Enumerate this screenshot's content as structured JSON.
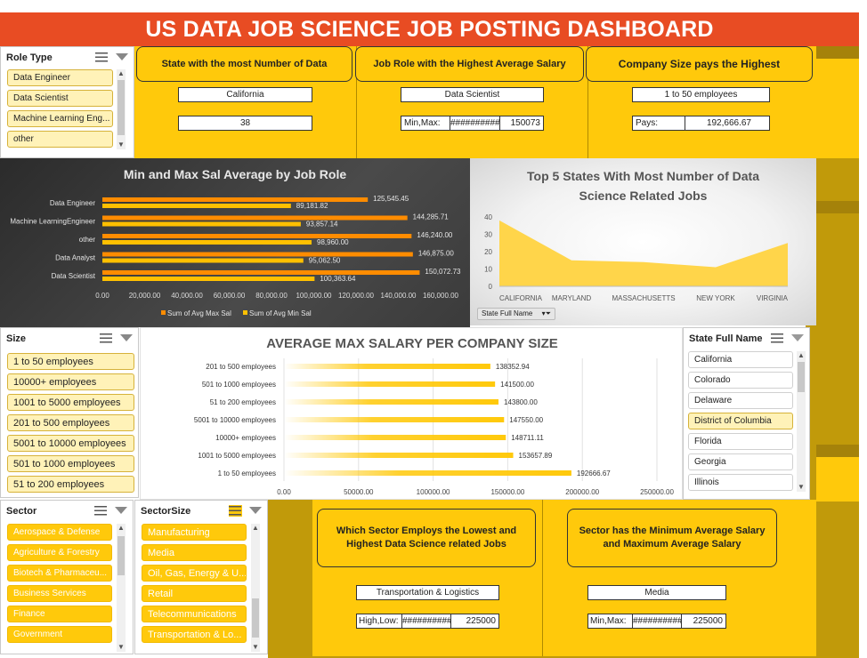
{
  "title": "US DATA JOB SCIENCE JOB POSTING DASHBOARD",
  "role_slicer": {
    "header": "Role Type",
    "items": [
      "Data Engineer",
      "Data Scientist",
      "Machine Learning Eng...",
      "other"
    ]
  },
  "kpi1": {
    "title": "State with the most Number of Data",
    "value": "California",
    "count": "38"
  },
  "kpi2": {
    "title": "Job Role with the Highest Average Salary",
    "value": "Data Scientist",
    "label": "Min,Max:",
    "hash": "##########",
    "max": "150073"
  },
  "kpi3": {
    "title": "Company Size pays the Highest",
    "value": "1 to 50 employees",
    "label": "Pays:",
    "amount": "192,666.67"
  },
  "chart1": {
    "title": "Min and Max Sal Average by Job Role",
    "legend_max": "Sum of Avg Max Sal",
    "legend_min": "Sum of Avg Min Sal",
    "colors": {
      "max": "#ff8c00",
      "min": "#ffc000"
    },
    "chart_data": {
      "type": "bar",
      "orientation": "horizontal",
      "categories": [
        "Data Engineer",
        "Machine LearningEngineer",
        "other",
        "Data Analyst",
        "Data Scientist"
      ],
      "series": [
        {
          "name": "Sum of Avg Max Sal",
          "values": [
            125545.45,
            144285.71,
            146240.0,
            146875.0,
            150072.73
          ],
          "labels": [
            "125,545.45",
            "144,285.71",
            "146,240.00",
            "146,875.00",
            "150,072.73"
          ]
        },
        {
          "name": "Sum of Avg Min Sal",
          "values": [
            89181.82,
            93857.14,
            98960.0,
            95062.5,
            100363.64
          ],
          "labels": [
            "89,181.82",
            "93,857.14",
            "98,960.00",
            "95,062.50",
            "100,363.64"
          ]
        }
      ],
      "xlim": [
        0,
        160000
      ],
      "xticks": [
        "0.00",
        "20,000.00",
        "40,000.00",
        "60,000.00",
        "80,000.00",
        "100,000.00",
        "120,000.00",
        "140,000.00",
        "160,000.00"
      ]
    }
  },
  "chart2": {
    "title_line1": "Top 5 States With Most Number of Data",
    "title_line2": "Science Related Jobs",
    "filter_label": "State Full Name",
    "color": "#ffd54a",
    "chart_data": {
      "type": "area",
      "categories": [
        "CALIFORNIA",
        "MARYLAND",
        "MASSACHUSETTS",
        "NEW YORK",
        "VIRGINIA"
      ],
      "values": [
        38,
        15,
        14,
        11,
        25
      ],
      "ylim": [
        0,
        40
      ],
      "yticks": [
        "0",
        "10",
        "20",
        "30",
        "40"
      ]
    }
  },
  "size_slicer": {
    "header": "Size",
    "items": [
      "1 to 50 employees",
      "10000+ employees",
      "1001 to 5000 employees",
      "201 to 500 employees",
      "5001 to 10000 employees",
      "501 to 1000 employees",
      "51 to 200 employees"
    ]
  },
  "chart3": {
    "title": "AVERAGE MAX SALARY PER COMPANY SIZE",
    "color": "#ffc90b",
    "chart_data": {
      "type": "bar",
      "orientation": "horizontal",
      "categories": [
        "201 to 500 employees",
        "501 to 1000 employees",
        "51 to 200 employees",
        "5001 to 10000 employees",
        "10000+ employees",
        "1001 to 5000 employees",
        "1 to 50 employees"
      ],
      "values": [
        138352.94,
        141500.0,
        143800.0,
        147550.0,
        148711.11,
        153657.89,
        192666.67
      ],
      "labels": [
        "138352.94",
        "141500.00",
        "143800.00",
        "147550.00",
        "148711.11",
        "153657.89",
        "192666.67"
      ],
      "xlim": [
        0,
        250000
      ],
      "xticks": [
        "0.00",
        "50000.00",
        "100000.00",
        "150000.00",
        "200000.00",
        "250000.00"
      ]
    }
  },
  "state_slicer": {
    "header": "State Full Name",
    "items": [
      "California",
      "Colorado",
      "Delaware",
      "District of Columbia",
      "Florida",
      "Georgia",
      "Illinois"
    ]
  },
  "sector_slicer": {
    "header": "Sector",
    "items": [
      "Aerospace & Defense",
      "Agriculture & Forestry",
      "Biotech & Pharmaceu...",
      "Business Services",
      "Finance",
      "Government"
    ]
  },
  "sectorsize_slicer": {
    "header": "SectorSize",
    "items": [
      "Manufacturing",
      "Media",
      "Oil, Gas, Energy & U...",
      "Retail",
      "Telecommunications",
      "Transportation & Lo..."
    ]
  },
  "kpi4": {
    "title": "Which Sector Employs the Lowest and Highest Data Science related Jobs",
    "value": "Transportation & Logistics",
    "label": "High,Low:",
    "hash": "##########",
    "amount": "225000"
  },
  "kpi5": {
    "title": "Sector has the Minimum Average Salary and Maximum Average Salary",
    "value": "Media",
    "label": "Min,Max:",
    "hash": "##########",
    "amount": "225000"
  }
}
